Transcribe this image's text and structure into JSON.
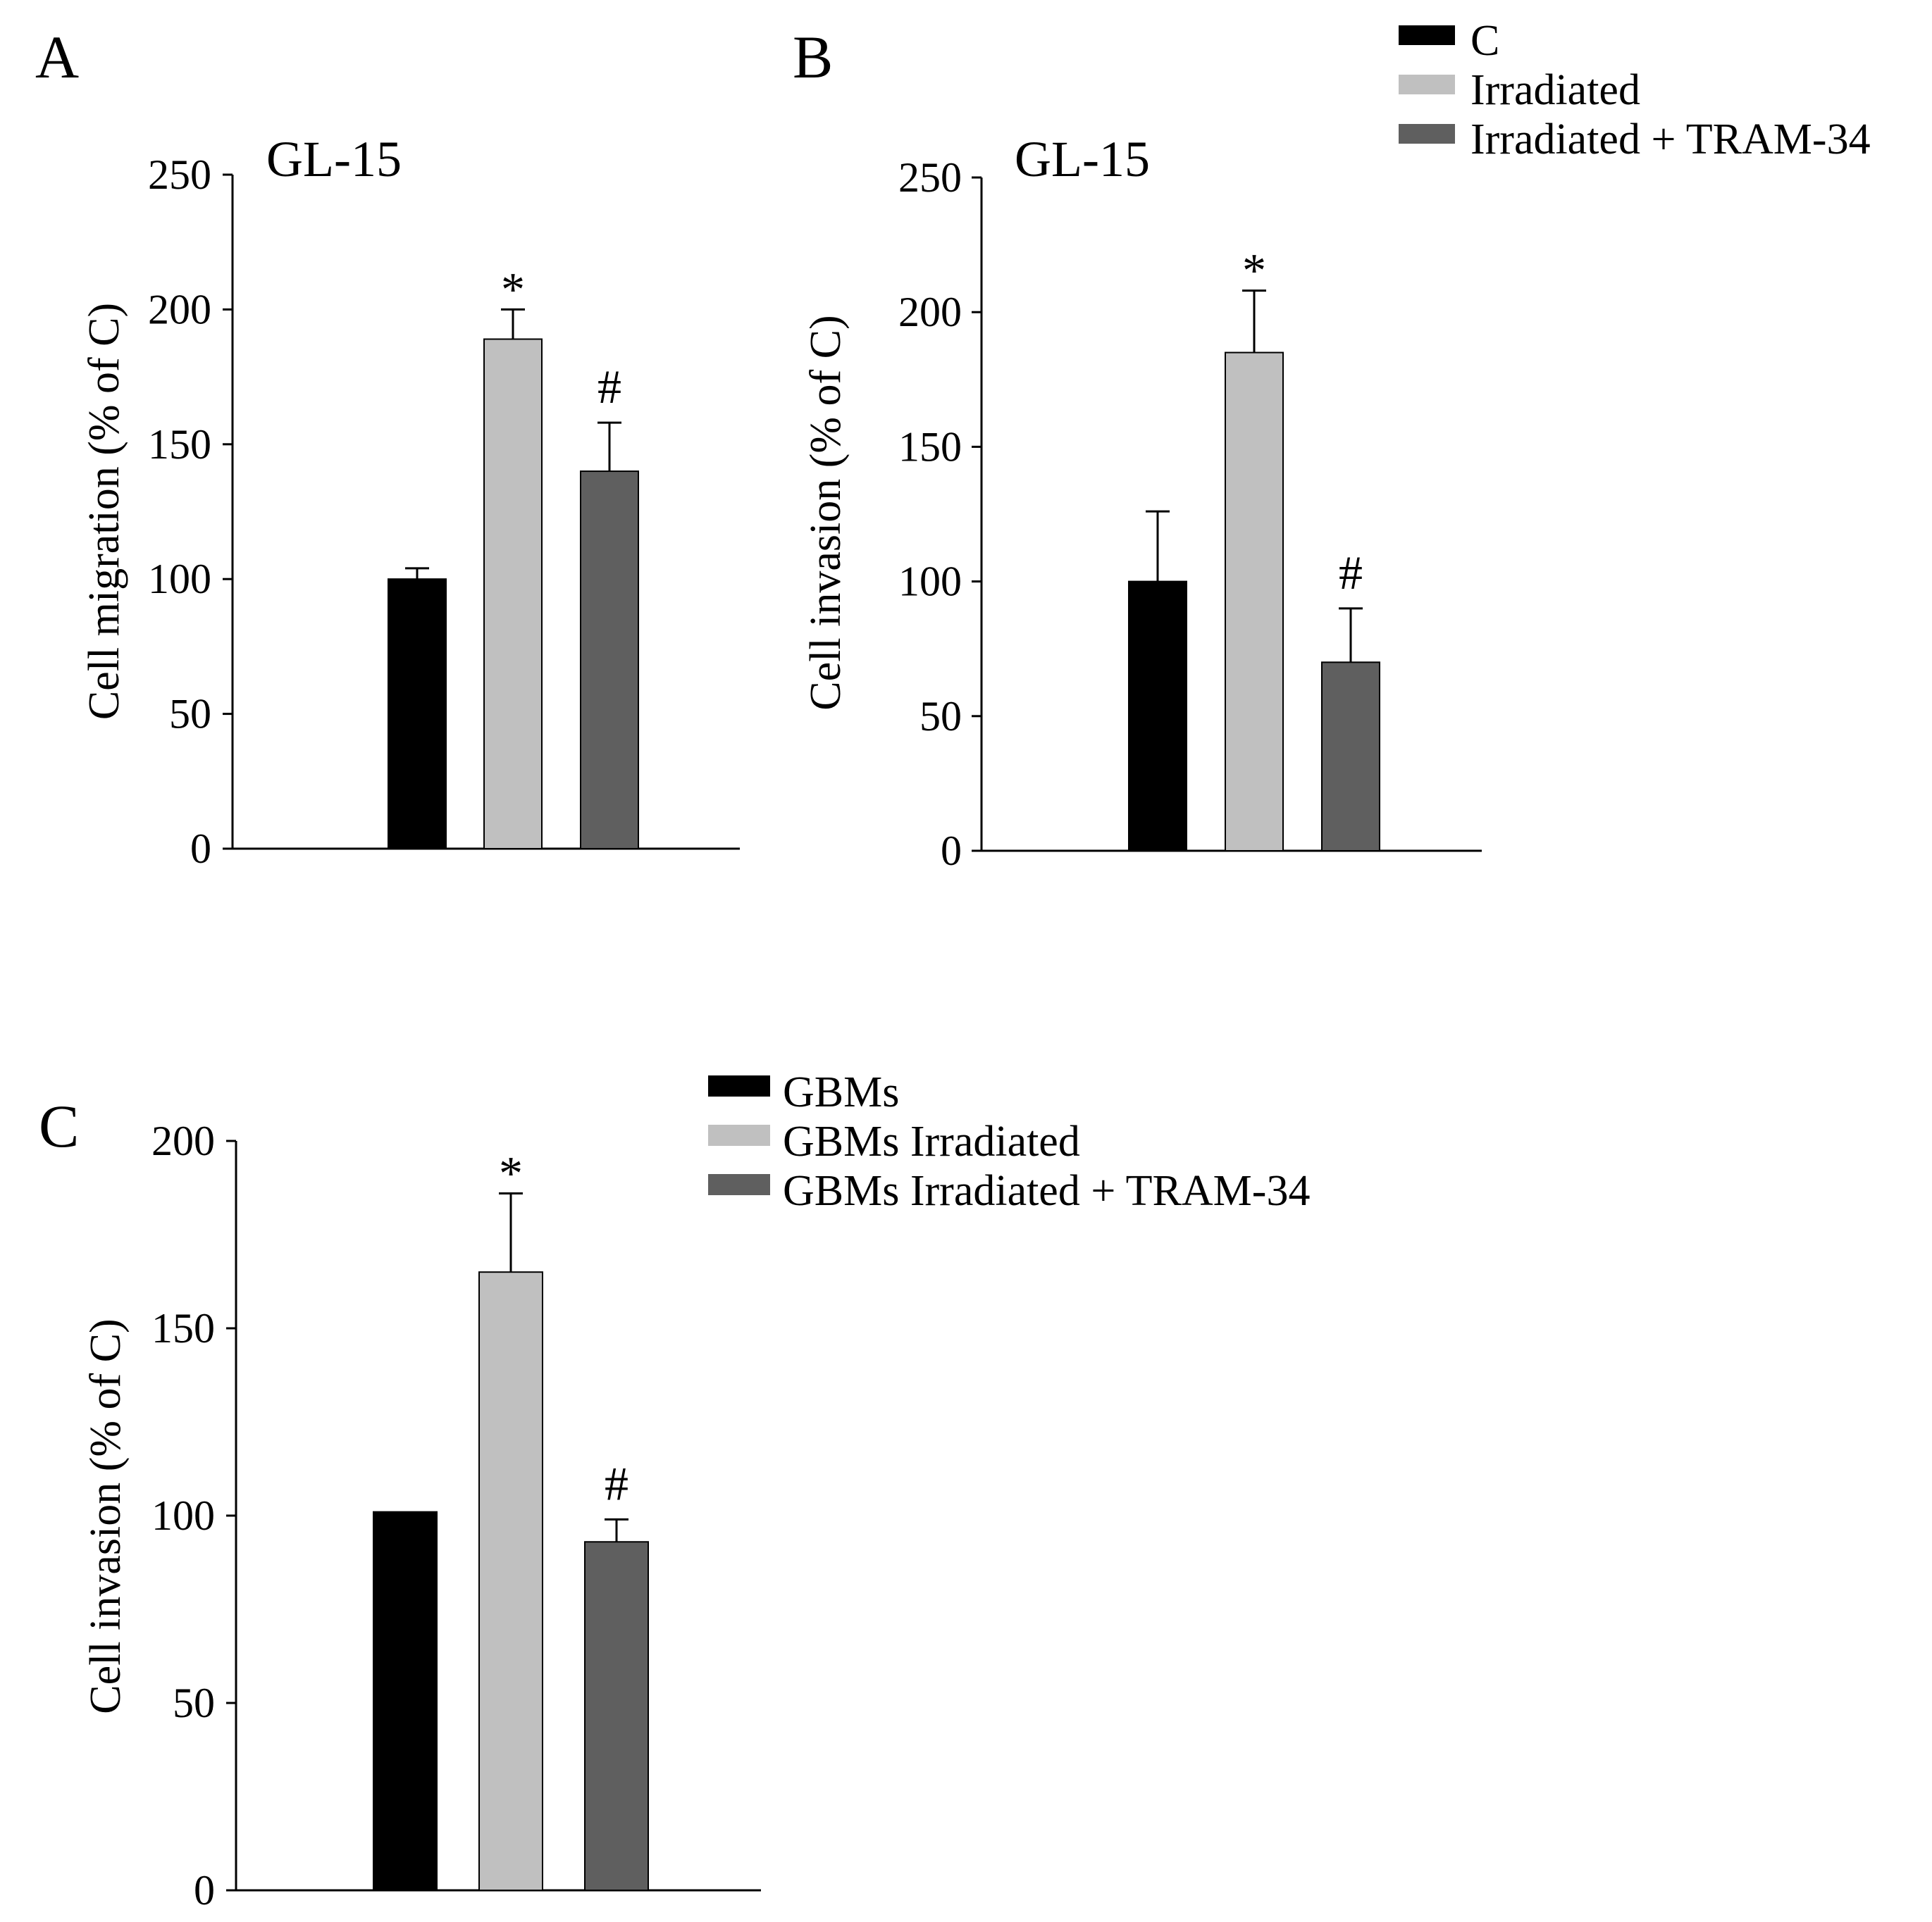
{
  "chart_data": [
    {
      "panel": "A",
      "type": "bar",
      "subtitle": "GL-15",
      "ylabel": "Cell migration (% of C)",
      "ylim": [
        0,
        250
      ],
      "yticks": [
        0,
        50,
        100,
        150,
        200,
        250
      ],
      "categories": [
        "C",
        "Irradiated",
        "Irradiated + TRAM-34"
      ],
      "values": [
        100,
        189,
        140
      ],
      "errors": [
        4,
        11,
        18
      ],
      "annotations": [
        "",
        "*",
        "#"
      ],
      "colors": [
        "#000000",
        "#c0c0c0",
        "#5f5f5f"
      ]
    },
    {
      "panel": "B",
      "type": "bar",
      "subtitle": "GL-15",
      "ylabel": "Cell invasion (% of C)",
      "ylim": [
        0,
        250
      ],
      "yticks": [
        0,
        50,
        100,
        150,
        200,
        250
      ],
      "categories": [
        "C",
        "Irradiated",
        "Irradiated + TRAM-34"
      ],
      "values": [
        100,
        185,
        70
      ],
      "errors": [
        26,
        23,
        20
      ],
      "annotations": [
        "",
        "*",
        "#"
      ],
      "colors": [
        "#000000",
        "#c0c0c0",
        "#5f5f5f"
      ],
      "legend": [
        "C",
        "Irradiated",
        "Irradiated + TRAM-34"
      ]
    },
    {
      "panel": "C",
      "type": "bar",
      "subtitle": "",
      "ylabel": "Cell invasion (% of C)",
      "ylim": [
        0,
        200
      ],
      "yticks": [
        0,
        50,
        100,
        150,
        200
      ],
      "categories": [
        "GBMs",
        "GBMs Irradiated",
        "GBMs Irradiated + TRAM-34"
      ],
      "values": [
        101,
        165,
        93
      ],
      "errors": [
        0,
        21,
        6
      ],
      "annotations": [
        "",
        "*",
        "#"
      ],
      "colors": [
        "#000000",
        "#c0c0c0",
        "#5f5f5f"
      ],
      "legend": [
        "GBMs",
        "GBMs Irradiated",
        "GBMs Irradiated + TRAM-34"
      ]
    }
  ]
}
